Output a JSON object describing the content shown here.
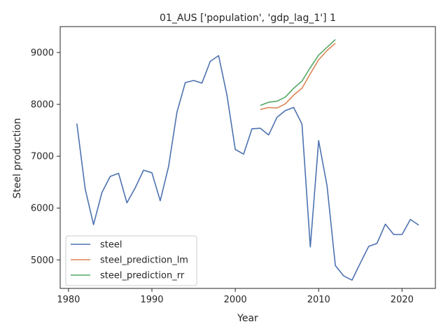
{
  "chart_data": {
    "type": "line",
    "title": "01_AUS ['population', 'gdp_lag_1'] 1",
    "xlabel": "Year",
    "ylabel": "Steel production",
    "xlim": [
      1979,
      2024
    ],
    "ylim": [
      4450,
      9500
    ],
    "xticks": [
      1980,
      1990,
      2000,
      2010,
      2020
    ],
    "yticks": [
      5000,
      6000,
      7000,
      8000,
      9000
    ],
    "legend_position": "lower-left",
    "grid": false,
    "series": [
      {
        "name": "steel",
        "color": "#4c72b0",
        "x": [
          1981,
          1982,
          1983,
          1984,
          1985,
          1986,
          1987,
          1988,
          1989,
          1990,
          1991,
          1992,
          1993,
          1994,
          1995,
          1996,
          1997,
          1998,
          1999,
          2000,
          2001,
          2002,
          2003,
          2004,
          2005,
          2006,
          2007,
          2008,
          2009,
          2010,
          2011,
          2012,
          2013,
          2014,
          2015,
          2016,
          2017,
          2018,
          2019,
          2020,
          2021,
          2022
        ],
        "y": [
          7630,
          6370,
          5680,
          6300,
          6610,
          6670,
          6100,
          6390,
          6730,
          6680,
          6140,
          6800,
          7850,
          8420,
          8460,
          8410,
          8830,
          8940,
          8180,
          7130,
          7040,
          7530,
          7540,
          7410,
          7750,
          7880,
          7940,
          7620,
          5250,
          7300,
          6430,
          4890,
          4690,
          4610,
          4940,
          5260,
          5320,
          5690,
          5490,
          5490,
          5780,
          5670
        ]
      },
      {
        "name": "steel_prediction_lm",
        "color": "#dd8452",
        "x": [
          2003,
          2004,
          2005,
          2006,
          2007,
          2008,
          2009,
          2010,
          2011,
          2012
        ],
        "y": [
          7900,
          7940,
          7930,
          8010,
          8180,
          8310,
          8590,
          8860,
          9040,
          9180
        ]
      },
      {
        "name": "steel_prediction_rr",
        "color": "#55a868",
        "x": [
          2003,
          2004,
          2005,
          2006,
          2007,
          2008,
          2009,
          2010,
          2011,
          2012
        ],
        "y": [
          7980,
          8040,
          8060,
          8140,
          8310,
          8450,
          8710,
          8950,
          9100,
          9250
        ]
      }
    ]
  }
}
